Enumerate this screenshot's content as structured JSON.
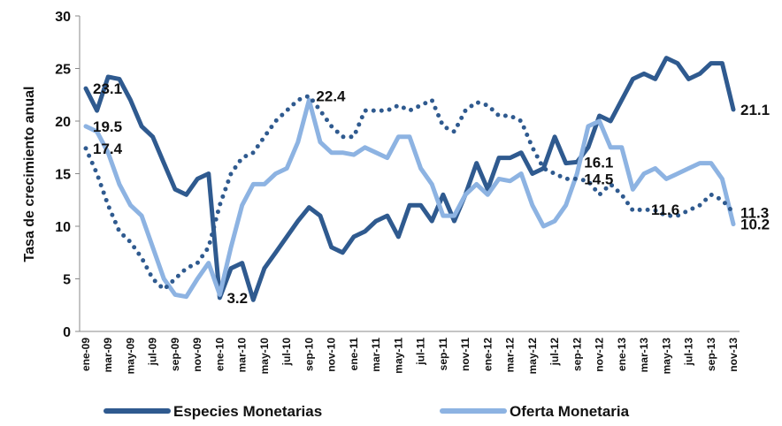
{
  "chart_data": {
    "type": "line",
    "ylabel": "Tasa de crecimiento anual",
    "categories": [
      "ene-09",
      null,
      "mar-09",
      null,
      "may-09",
      null,
      "jul-09",
      null,
      "sep-09",
      null,
      "nov-09",
      null,
      "ene-10",
      null,
      "mar-10",
      null,
      "may-10",
      null,
      "jul-10",
      null,
      "sep-10",
      null,
      "nov-10",
      null,
      "ene-11",
      null,
      "mar-11",
      null,
      "may-11",
      null,
      "jul-11",
      null,
      "sep-11",
      null,
      "nov-11",
      null,
      "ene-12",
      null,
      "mar-12",
      null,
      "may-12",
      null,
      "jul-12",
      null,
      "sep-12",
      null,
      "nov-12",
      null,
      "ene-13",
      null,
      "mar-13",
      null,
      "may-13",
      null,
      "jul-13",
      null,
      "sep-13",
      null,
      "nov-13"
    ],
    "ylim": [
      0,
      30
    ],
    "yticks": [
      0,
      5,
      10,
      15,
      20,
      25,
      30
    ],
    "grid": false,
    "legend": "bottom",
    "series": [
      {
        "name": "Especies Monetarias",
        "color": "#2f5a8f",
        "line_style": "solid",
        "values": [
          23.1,
          21,
          24.2,
          24,
          22,
          19.5,
          18.5,
          16,
          13.5,
          13,
          14.5,
          15,
          3.2,
          6,
          6.5,
          3,
          6,
          7.5,
          9,
          10.5,
          11.8,
          11,
          8,
          7.5,
          9,
          9.5,
          10.5,
          11,
          9,
          12,
          12,
          10.5,
          13,
          10.5,
          13,
          16,
          13.5,
          16.5,
          16.5,
          17,
          15,
          15.5,
          18.5,
          16,
          16.1,
          17.5,
          20.5,
          20,
          22,
          24,
          24.5,
          24,
          26,
          25.5,
          24,
          24.5,
          25.5,
          25.5,
          21.1
        ],
        "value_labels": [
          "23.1",
          null,
          null,
          null,
          null,
          null,
          null,
          null,
          null,
          null,
          null,
          null,
          "3.2",
          null,
          null,
          null,
          null,
          null,
          null,
          null,
          null,
          null,
          null,
          null,
          null,
          null,
          null,
          null,
          null,
          null,
          null,
          null,
          null,
          null,
          null,
          null,
          null,
          null,
          null,
          null,
          null,
          null,
          null,
          null,
          "16.1",
          null,
          null,
          null,
          null,
          null,
          null,
          null,
          null,
          null,
          null,
          null,
          null,
          null,
          "21.1"
        ]
      },
      {
        "name": "Oferta Monetaria",
        "color": "#8db3e2",
        "line_style": "solid",
        "values": [
          19.5,
          19,
          17,
          14,
          12,
          11,
          8,
          5,
          3.5,
          3.3,
          5,
          6.5,
          3.5,
          8,
          12,
          14,
          14,
          15,
          15.5,
          18,
          22,
          18,
          17,
          17,
          16.8,
          17.5,
          17,
          16.5,
          18.5,
          18.5,
          15.5,
          14,
          11,
          11,
          13,
          14,
          13,
          14.5,
          14.3,
          15,
          12,
          10,
          10.5,
          12,
          15,
          19.5,
          20,
          17.5,
          17.5,
          13.5,
          15,
          15.5,
          14.5,
          15,
          15.5,
          16,
          16,
          14.5,
          10.2
        ],
        "value_labels": [
          "19.5",
          null,
          null,
          null,
          null,
          null,
          null,
          null,
          null,
          null,
          null,
          null,
          null,
          null,
          null,
          null,
          null,
          null,
          null,
          null,
          null,
          null,
          null,
          null,
          null,
          null,
          null,
          null,
          null,
          null,
          null,
          null,
          null,
          null,
          null,
          null,
          null,
          null,
          null,
          null,
          null,
          null,
          null,
          null,
          null,
          null,
          null,
          null,
          null,
          null,
          null,
          null,
          null,
          null,
          null,
          null,
          null,
          null,
          "10.2"
        ]
      },
      {
        "color": "#2f5a8f",
        "line_style": "dotted",
        "values": [
          17.4,
          15,
          12,
          9.5,
          8.5,
          7,
          5,
          4,
          5,
          6,
          6.5,
          8,
          12,
          15,
          16.5,
          17,
          18.5,
          20,
          21,
          22,
          22.4,
          21,
          19.5,
          18.5,
          18.5,
          21,
          21,
          21,
          21.5,
          21,
          21.5,
          22,
          19.5,
          19,
          21,
          21.8,
          21.5,
          20.5,
          20.5,
          20,
          17.5,
          15.5,
          15,
          14.5,
          14.5,
          14.3,
          13,
          14,
          13,
          11.5,
          11.6,
          11.5,
          11,
          11,
          11.5,
          12,
          13,
          12.5,
          11.3
        ],
        "value_labels": [
          "17.4",
          null,
          null,
          null,
          null,
          null,
          null,
          null,
          null,
          null,
          null,
          null,
          null,
          null,
          null,
          null,
          null,
          null,
          null,
          null,
          "22.4",
          null,
          null,
          null,
          null,
          null,
          null,
          null,
          null,
          null,
          null,
          null,
          null,
          null,
          null,
          null,
          null,
          null,
          null,
          null,
          null,
          null,
          null,
          null,
          "14.5",
          null,
          null,
          null,
          null,
          null,
          "11.6",
          null,
          null,
          null,
          null,
          null,
          null,
          null,
          "11.3"
        ]
      }
    ]
  }
}
